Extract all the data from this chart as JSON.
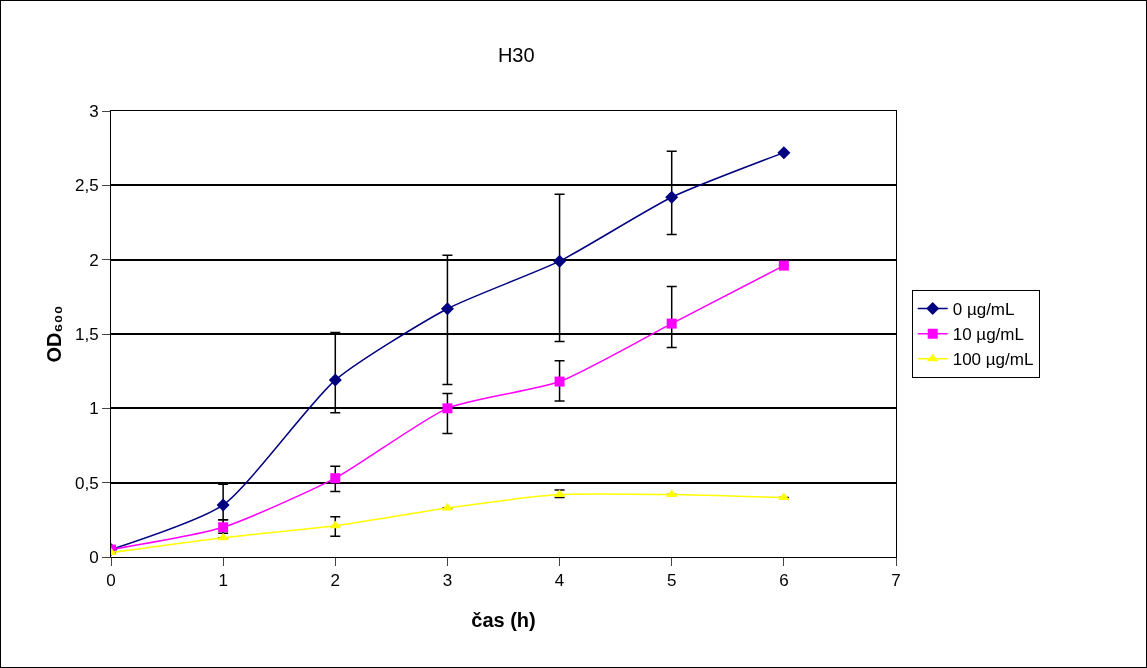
{
  "chart_data": {
    "type": "line",
    "title": "H30",
    "xlabel": "čas (h)",
    "ylabel": "OD₆₀₀",
    "x": [
      0,
      1,
      2,
      3,
      4,
      5,
      6
    ],
    "xlim": [
      0,
      7
    ],
    "xticks": [
      0,
      1,
      2,
      3,
      4,
      5,
      6,
      7
    ],
    "ylim": [
      0,
      3
    ],
    "yticks": [
      0,
      {
        "value": 0.5,
        "label": "0,5"
      },
      1,
      {
        "value": 1.5,
        "label": "1,5"
      },
      2,
      {
        "value": 2.5,
        "label": "2,5"
      },
      3
    ],
    "grid": "y",
    "legend": "right",
    "line_style": "solid",
    "series": [
      {
        "name": "0 µg/mL",
        "color": "#000080",
        "marker": "diamond",
        "values": [
          0.05,
          0.35,
          1.19,
          1.67,
          1.99,
          2.42,
          2.72
        ],
        "errors": [
          null,
          [
            0.25,
            0.49
          ],
          [
            0.97,
            1.51
          ],
          [
            1.16,
            2.03
          ],
          [
            1.45,
            2.44
          ],
          [
            2.17,
            2.73
          ],
          null
        ]
      },
      {
        "name": "10 µg/mL",
        "color": "#ff00ff",
        "marker": "square",
        "values": [
          0.05,
          0.2,
          0.53,
          1.0,
          1.18,
          1.57,
          1.96
        ],
        "errors": [
          null,
          [
            0.16,
            0.25
          ],
          [
            0.44,
            0.61
          ],
          [
            0.83,
            1.1
          ],
          [
            1.05,
            1.32
          ],
          [
            1.41,
            1.82
          ],
          null
        ]
      },
      {
        "name": "100 µg/mL",
        "color": "#ffff00",
        "marker": "triangle",
        "values": [
          0.03,
          0.13,
          0.21,
          0.33,
          0.42,
          0.42,
          0.4
        ],
        "errors": [
          null,
          null,
          [
            0.14,
            0.27
          ],
          null,
          [
            0.4,
            0.45
          ],
          null,
          null
        ]
      }
    ]
  }
}
